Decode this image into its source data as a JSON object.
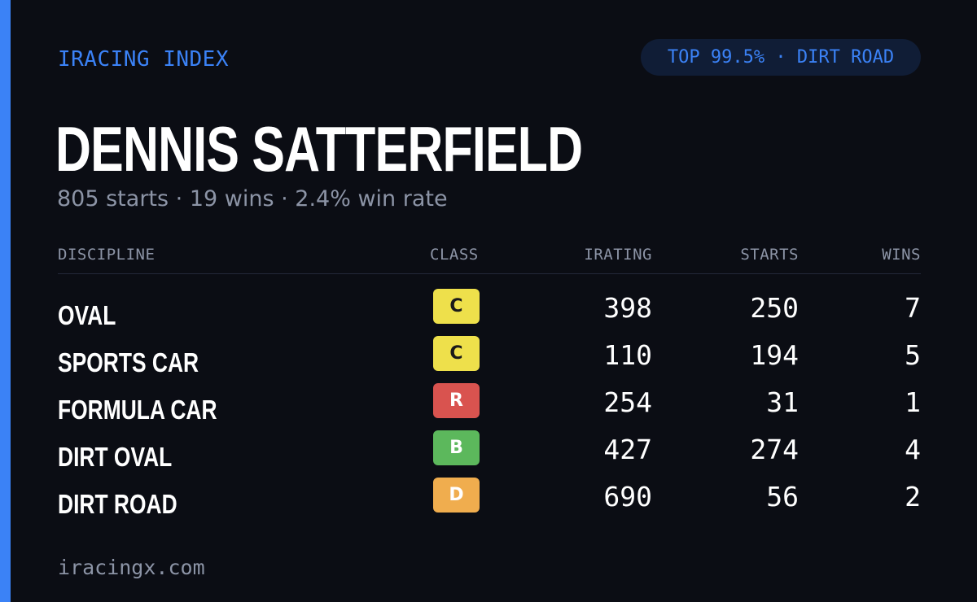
{
  "brand": "IRACING INDEX",
  "badge": "TOP 99.5% · DIRT ROAD",
  "driver": {
    "name": "DENNIS SATTERFIELD",
    "summary": "805 starts · 19 wins · 2.4% win rate"
  },
  "table": {
    "headers": {
      "discipline": "DISCIPLINE",
      "class": "CLASS",
      "irating": "IRATING",
      "starts": "STARTS",
      "wins": "WINS"
    },
    "rows": [
      {
        "discipline": "OVAL",
        "class": "C",
        "class_color": "#eee04b",
        "irating": "398",
        "starts": "250",
        "wins": "7"
      },
      {
        "discipline": "SPORTS CAR",
        "class": "C",
        "class_color": "#eee04b",
        "irating": "110",
        "starts": "194",
        "wins": "5"
      },
      {
        "discipline": "FORMULA CAR",
        "class": "R",
        "class_color": "#d9534f",
        "irating": "254",
        "starts": "31",
        "wins": "1"
      },
      {
        "discipline": "DIRT OVAL",
        "class": "B",
        "class_color": "#5cb85c",
        "irating": "427",
        "starts": "274",
        "wins": "4"
      },
      {
        "discipline": "DIRT ROAD",
        "class": "D",
        "class_color": "#f0ad4e",
        "irating": "690",
        "starts": "56",
        "wins": "2"
      }
    ]
  },
  "footer": "iracingx.com",
  "colors": {
    "accent": "#3b82f6",
    "background": "#0b0d14",
    "muted": "#8c94a6"
  }
}
